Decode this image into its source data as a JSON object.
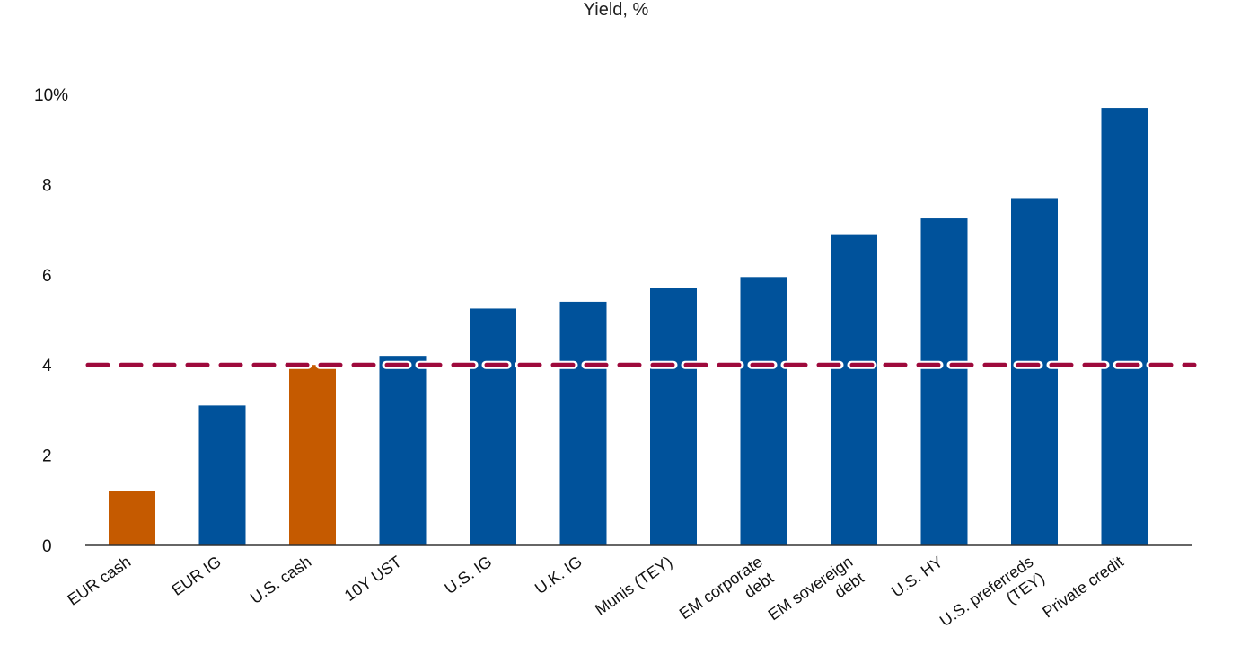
{
  "chart_data": {
    "type": "bar",
    "title": "Yield, %",
    "categories": [
      "EUR cash",
      "EUR IG",
      "U.S. cash",
      "10Y UST",
      "U.S. IG",
      "U.K. IG",
      "Munis (TEY)",
      "EM corporate debt",
      "EM sovereign debt",
      "U.S. HY",
      "U.S. preferreds (TEY)",
      "Private credit"
    ],
    "category_label_lines": [
      [
        "EUR cash"
      ],
      [
        "EUR IG"
      ],
      [
        "U.S. cash"
      ],
      [
        "10Y UST"
      ],
      [
        "U.S. IG"
      ],
      [
        "U.K. IG"
      ],
      [
        "Munis (TEY)"
      ],
      [
        "EM corporate",
        "debt"
      ],
      [
        "EM sovereign",
        "debt"
      ],
      [
        "U.S. HY"
      ],
      [
        "U.S. preferreds",
        "(TEY)"
      ],
      [
        "Private credit"
      ]
    ],
    "values": [
      1.2,
      3.1,
      4.0,
      4.2,
      5.25,
      5.4,
      5.7,
      5.95,
      6.9,
      7.25,
      7.7,
      9.7
    ],
    "bar_colors": [
      "#c55a00",
      "#00529b",
      "#c55a00",
      "#00529b",
      "#00529b",
      "#00529b",
      "#00529b",
      "#00529b",
      "#00529b",
      "#00529b",
      "#00529b",
      "#00529b"
    ],
    "reference_line": {
      "value": 4,
      "color": "#9e0a3c"
    },
    "ylim": [
      0,
      10
    ],
    "yticks": [
      0,
      2,
      4,
      6,
      8,
      10
    ],
    "ytick_labels": [
      "0",
      "2",
      "4",
      "6",
      "8",
      "10%"
    ],
    "xlabel": "",
    "ylabel": "",
    "grid": false,
    "legend": "none"
  }
}
